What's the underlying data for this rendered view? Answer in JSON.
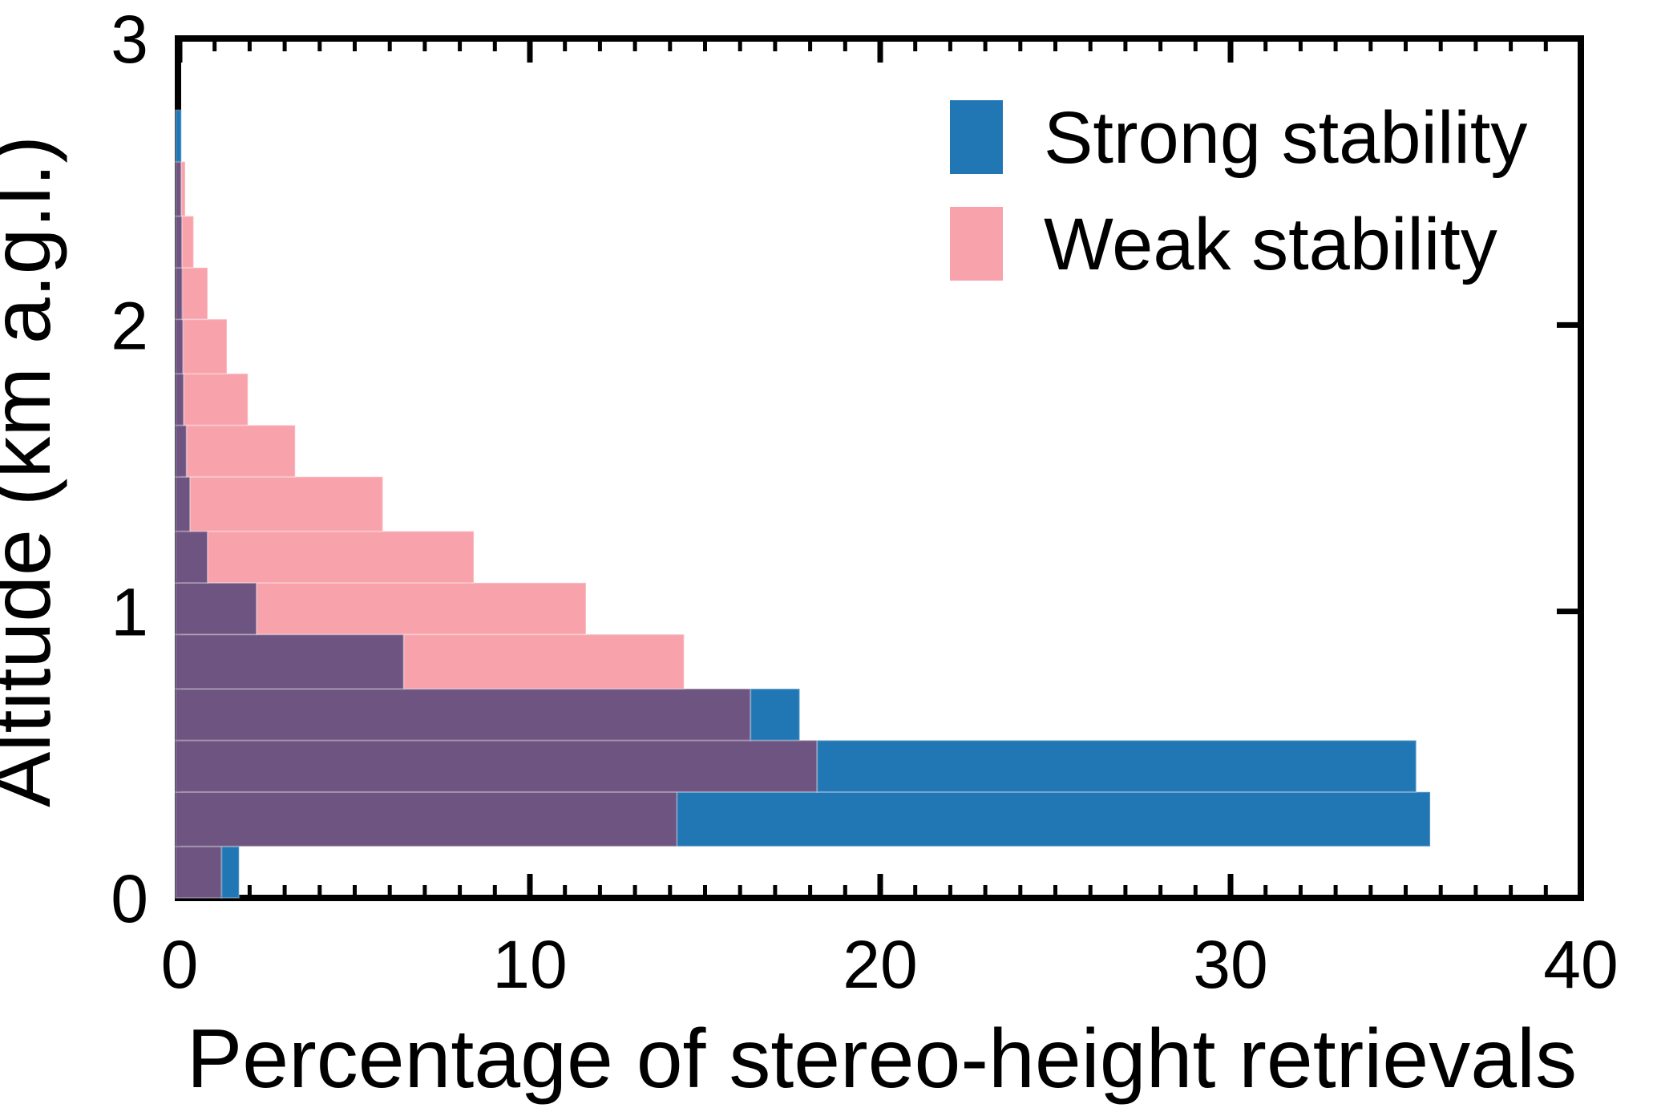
{
  "figure": {
    "xlabel": "Percentage of stereo-height retrievals",
    "ylabel": "Altitude (km a.g.l.)"
  },
  "chart_data": {
    "type": "bar",
    "subtype": "horizontal-overlapping-histogram",
    "title": "",
    "xlabel": "Percentage of stereo-height retrievals",
    "ylabel": "Altitude (km a.g.l.)",
    "xlim": [
      0,
      40
    ],
    "ylim": [
      0,
      3
    ],
    "x_ticks": [
      0,
      10,
      20,
      30,
      40
    ],
    "x_minor_tick_step": 1,
    "y_ticks": [
      0,
      1,
      2,
      3
    ],
    "y_tick_marks_right_axis": [
      1,
      2
    ],
    "grid": false,
    "legend_position": "upper right",
    "bin_edges_altitude_km": [
      0,
      0.18,
      0.37,
      0.55,
      0.73,
      0.92,
      1.1,
      1.28,
      1.47,
      1.65,
      1.83,
      2.02,
      2.2,
      2.38,
      2.57,
      2.75
    ],
    "series": [
      {
        "name": "Strong stability",
        "color": "#2176B4",
        "values": [
          1.7,
          35.7,
          35.3,
          17.7,
          6.4,
          2.2,
          0.8,
          0.3,
          0.2,
          0.12,
          0.1,
          0.08,
          0.07,
          0.05,
          0.05
        ]
      },
      {
        "name": "Weak stability",
        "color": "#F8A2AB",
        "values": [
          1.2,
          14.2,
          18.2,
          16.3,
          14.4,
          11.6,
          8.4,
          5.8,
          3.3,
          1.95,
          1.35,
          0.8,
          0.4,
          0.16,
          0
        ]
      }
    ],
    "overlap_color": "#6E5480",
    "axis_color": "#000000"
  }
}
